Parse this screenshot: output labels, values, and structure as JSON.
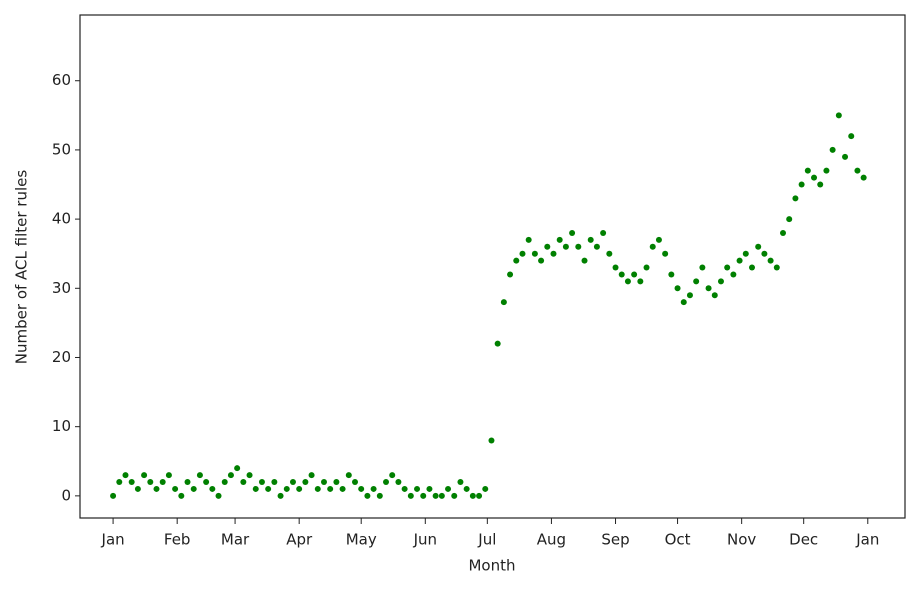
{
  "chart_data": {
    "type": "scatter",
    "xlabel": "Month",
    "ylabel": "Number of ACL filter rules",
    "color": "#008000",
    "x": [
      0,
      3,
      6,
      9,
      12,
      15,
      18,
      21,
      24,
      27,
      30,
      33,
      36,
      39,
      42,
      45,
      48,
      51,
      54,
      57,
      60,
      63,
      66,
      69,
      72,
      75,
      78,
      81,
      84,
      87,
      90,
      93,
      96,
      99,
      102,
      105,
      108,
      111,
      114,
      117,
      120,
      123,
      126,
      129,
      132,
      135,
      138,
      141,
      144,
      147,
      150,
      153,
      156,
      159,
      162,
      165,
      168,
      171,
      174,
      177,
      180,
      183,
      186,
      189,
      192,
      195,
      198,
      201,
      204,
      207,
      210,
      213,
      216,
      219,
      222,
      225,
      228,
      231,
      234,
      237,
      240,
      243,
      246,
      249,
      252,
      255,
      258,
      261,
      264,
      267,
      270,
      273,
      276,
      279,
      282,
      285,
      288,
      291,
      294,
      297,
      300,
      303,
      306,
      309,
      312,
      315,
      318,
      321,
      324,
      327,
      330,
      333,
      336,
      339,
      342,
      345,
      348,
      351,
      354,
      357,
      360,
      363
    ],
    "values": [
      0,
      2,
      3,
      2,
      1,
      3,
      2,
      1,
      2,
      3,
      1,
      0,
      2,
      1,
      3,
      2,
      1,
      0,
      2,
      3,
      4,
      2,
      3,
      1,
      2,
      1,
      2,
      0,
      1,
      2,
      1,
      2,
      3,
      1,
      2,
      1,
      2,
      1,
      3,
      2,
      1,
      0,
      1,
      0,
      2,
      3,
      2,
      1,
      0,
      1,
      0,
      1,
      0,
      0,
      1,
      0,
      2,
      1,
      0,
      0,
      1,
      8,
      22,
      28,
      32,
      34,
      35,
      37,
      35,
      34,
      36,
      35,
      37,
      36,
      38,
      36,
      34,
      37,
      36,
      38,
      35,
      33,
      32,
      31,
      32,
      31,
      33,
      36,
      37,
      35,
      32,
      30,
      28,
      29,
      31,
      33,
      30,
      29,
      31,
      33,
      32,
      34,
      35,
      33,
      36,
      35,
      34,
      33,
      38,
      40,
      43,
      45,
      47,
      46,
      45,
      47,
      50,
      55,
      49,
      52,
      47,
      46
    ],
    "xlim": [
      -16,
      383
    ],
    "ylim": [
      -3.2,
      69.5
    ],
    "xticks": [
      {
        "value": 0,
        "label": "Jan"
      },
      {
        "value": 31,
        "label": "Feb"
      },
      {
        "value": 59,
        "label": "Mar"
      },
      {
        "value": 90,
        "label": "Apr"
      },
      {
        "value": 120,
        "label": "May"
      },
      {
        "value": 151,
        "label": "Jun"
      },
      {
        "value": 181,
        "label": "Jul"
      },
      {
        "value": 212,
        "label": "Aug"
      },
      {
        "value": 243,
        "label": "Sep"
      },
      {
        "value": 273,
        "label": "Oct"
      },
      {
        "value": 304,
        "label": "Nov"
      },
      {
        "value": 334,
        "label": "Dec"
      },
      {
        "value": 365,
        "label": "Jan"
      }
    ],
    "yticks": [
      0,
      10,
      20,
      30,
      40,
      50,
      60
    ]
  }
}
